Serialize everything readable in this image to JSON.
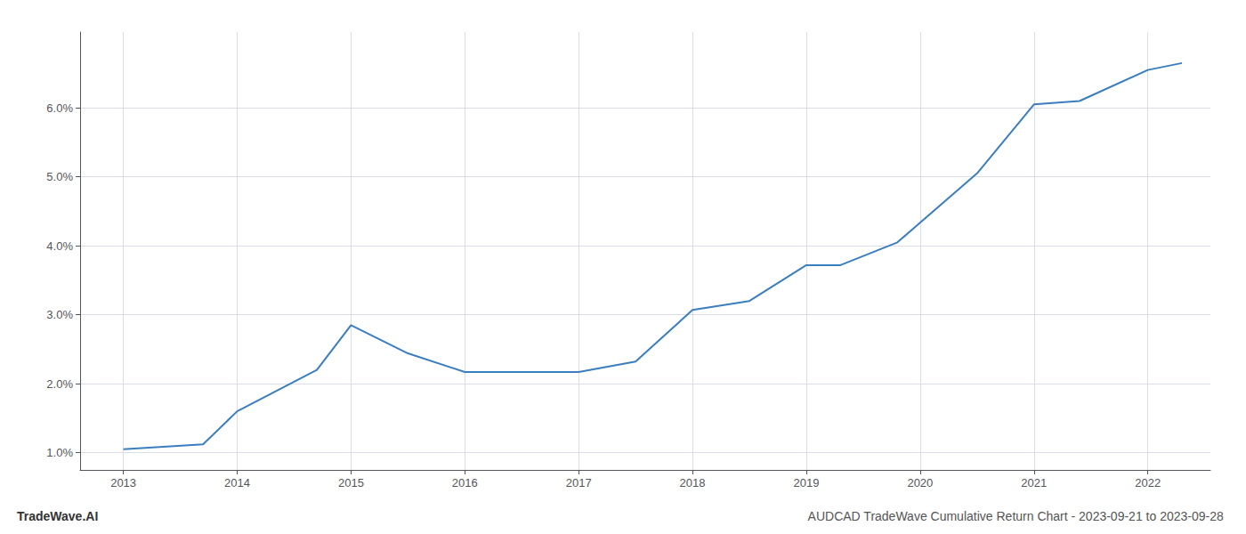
{
  "chart_data": {
    "type": "line",
    "title": "AUDCAD TradeWave Cumulative Return Chart - 2023-09-21 to 2023-09-28",
    "annotations": [
      "TradeWave.AI"
    ],
    "x": [
      2013.0,
      2013.7,
      2014.0,
      2014.7,
      2015.0,
      2015.5,
      2016.0,
      2016.5,
      2017.0,
      2017.5,
      2018.0,
      2018.5,
      2019.0,
      2019.3,
      2019.8,
      2020.5,
      2021.0,
      2021.4,
      2022.0,
      2022.3
    ],
    "values": [
      1.05,
      1.12,
      1.6,
      2.2,
      2.85,
      2.44,
      2.17,
      2.17,
      2.17,
      2.32,
      3.07,
      3.2,
      3.72,
      3.72,
      4.05,
      5.05,
      6.05,
      6.1,
      6.55,
      6.65
    ],
    "color": "#3a7ebf",
    "xlim": [
      2012.62,
      2022.55
    ],
    "xticks": [
      2013,
      2014,
      2015,
      2016,
      2017,
      2018,
      2019,
      2020,
      2021,
      2022
    ],
    "ylim": [
      0.75,
      7.1
    ],
    "yticks": [
      {
        "value": 1.0,
        "label": "1.0%"
      },
      {
        "value": 2.0,
        "label": "2.0%"
      },
      {
        "value": 3.0,
        "label": "3.0%"
      },
      {
        "value": 4.0,
        "label": "4.0%"
      },
      {
        "value": 5.0,
        "label": "5.0%"
      },
      {
        "value": 6.0,
        "label": "6.0%"
      }
    ],
    "grid": true
  }
}
